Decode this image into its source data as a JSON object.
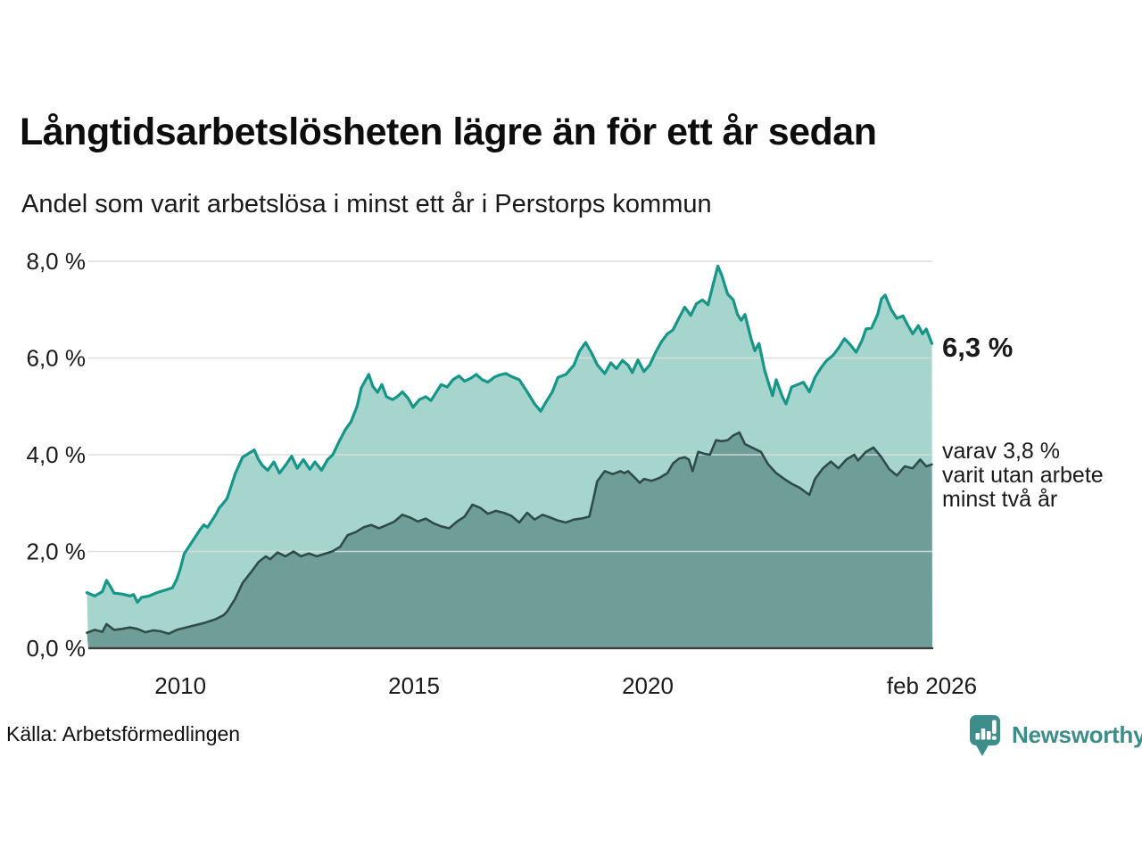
{
  "header": {
    "title": "Långtidsarbetslösheten lägre än för ett år sedan",
    "subtitle": "Andel som varit arbetslösa i minst ett år i Perstorps kommun"
  },
  "footer": {
    "source": "Källa: Arbetsförmedlingen",
    "brand": "Newsworthy"
  },
  "colors": {
    "brand_teal": "#3d8e8b",
    "grid": "#d8dbda",
    "axis": "#3b3b3b",
    "text": "#1a1a1a"
  },
  "chart_data": {
    "type": "area",
    "title": "Långtidsarbetslösheten lägre än för ett år sedan",
    "subtitle": "Andel som varit arbetslösa i minst ett år i Perstorps kommun",
    "xlabel": "",
    "ylabel": "",
    "ylim": [
      0,
      8
    ],
    "xlim": [
      2008.03,
      2026.09
    ],
    "grid": true,
    "legend_position": "right-annotations",
    "y_ticks": [
      {
        "value": 8,
        "label": "8,0 %"
      },
      {
        "value": 6,
        "label": "6,0 %"
      },
      {
        "value": 4,
        "label": "4,0 %"
      },
      {
        "value": 2,
        "label": "2,0 %"
      },
      {
        "value": 0,
        "label": "0,0 %"
      }
    ],
    "x_ticks": [
      {
        "year": 2010,
        "label": "2010"
      },
      {
        "year": 2015,
        "label": "2015"
      },
      {
        "year": 2020,
        "label": "2020"
      },
      {
        "year": 2026.08,
        "label": "feb 2026"
      }
    ],
    "series": [
      {
        "name": "Andel som varit arbetslösa i minst ett år",
        "line_color": "#169688",
        "fill_color": "#a6d5cd",
        "line_width": 3.2,
        "end_value": "6,3 %",
        "end_label_lines": [
          "6,3 %"
        ],
        "points": [
          [
            2008.0,
            1.15
          ],
          [
            2008.17,
            1.08
          ],
          [
            2008.33,
            1.17
          ],
          [
            2008.42,
            1.4
          ],
          [
            2008.5,
            1.28
          ],
          [
            2008.58,
            1.14
          ],
          [
            2008.75,
            1.12
          ],
          [
            2008.92,
            1.08
          ],
          [
            2009.0,
            1.11
          ],
          [
            2009.08,
            0.95
          ],
          [
            2009.17,
            1.05
          ],
          [
            2009.33,
            1.08
          ],
          [
            2009.5,
            1.15
          ],
          [
            2009.67,
            1.2
          ],
          [
            2009.83,
            1.25
          ],
          [
            2009.92,
            1.42
          ],
          [
            2010.0,
            1.65
          ],
          [
            2010.08,
            1.95
          ],
          [
            2010.25,
            2.2
          ],
          [
            2010.42,
            2.45
          ],
          [
            2010.5,
            2.55
          ],
          [
            2010.58,
            2.5
          ],
          [
            2010.75,
            2.75
          ],
          [
            2010.83,
            2.9
          ],
          [
            2010.92,
            3.0
          ],
          [
            2011.0,
            3.1
          ],
          [
            2011.17,
            3.6
          ],
          [
            2011.33,
            3.95
          ],
          [
            2011.5,
            4.05
          ],
          [
            2011.58,
            4.1
          ],
          [
            2011.67,
            3.9
          ],
          [
            2011.75,
            3.78
          ],
          [
            2011.87,
            3.68
          ],
          [
            2012.0,
            3.85
          ],
          [
            2012.12,
            3.62
          ],
          [
            2012.25,
            3.78
          ],
          [
            2012.38,
            3.97
          ],
          [
            2012.5,
            3.72
          ],
          [
            2012.63,
            3.9
          ],
          [
            2012.77,
            3.7
          ],
          [
            2012.88,
            3.85
          ],
          [
            2013.02,
            3.68
          ],
          [
            2013.15,
            3.9
          ],
          [
            2013.26,
            4.0
          ],
          [
            2013.4,
            4.28
          ],
          [
            2013.53,
            4.52
          ],
          [
            2013.65,
            4.68
          ],
          [
            2013.78,
            5.0
          ],
          [
            2013.87,
            5.38
          ],
          [
            2014.03,
            5.66
          ],
          [
            2014.12,
            5.41
          ],
          [
            2014.22,
            5.29
          ],
          [
            2014.31,
            5.45
          ],
          [
            2014.41,
            5.2
          ],
          [
            2014.54,
            5.14
          ],
          [
            2014.64,
            5.2
          ],
          [
            2014.75,
            5.3
          ],
          [
            2014.87,
            5.17
          ],
          [
            2014.98,
            4.98
          ],
          [
            2015.11,
            5.14
          ],
          [
            2015.25,
            5.2
          ],
          [
            2015.36,
            5.12
          ],
          [
            2015.46,
            5.27
          ],
          [
            2015.58,
            5.45
          ],
          [
            2015.71,
            5.4
          ],
          [
            2015.83,
            5.55
          ],
          [
            2015.96,
            5.63
          ],
          [
            2016.08,
            5.52
          ],
          [
            2016.21,
            5.58
          ],
          [
            2016.33,
            5.66
          ],
          [
            2016.46,
            5.55
          ],
          [
            2016.58,
            5.5
          ],
          [
            2016.71,
            5.6
          ],
          [
            2016.83,
            5.65
          ],
          [
            2016.96,
            5.68
          ],
          [
            2017.08,
            5.62
          ],
          [
            2017.25,
            5.55
          ],
          [
            2017.42,
            5.3
          ],
          [
            2017.58,
            5.05
          ],
          [
            2017.71,
            4.9
          ],
          [
            2017.83,
            5.1
          ],
          [
            2017.96,
            5.3
          ],
          [
            2018.08,
            5.6
          ],
          [
            2018.25,
            5.66
          ],
          [
            2018.42,
            5.85
          ],
          [
            2018.54,
            6.14
          ],
          [
            2018.67,
            6.32
          ],
          [
            2018.79,
            6.12
          ],
          [
            2018.92,
            5.86
          ],
          [
            2019.08,
            5.68
          ],
          [
            2019.21,
            5.9
          ],
          [
            2019.33,
            5.78
          ],
          [
            2019.46,
            5.95
          ],
          [
            2019.58,
            5.85
          ],
          [
            2019.67,
            5.7
          ],
          [
            2019.79,
            5.96
          ],
          [
            2019.92,
            5.72
          ],
          [
            2020.04,
            5.85
          ],
          [
            2020.17,
            6.12
          ],
          [
            2020.29,
            6.33
          ],
          [
            2020.42,
            6.5
          ],
          [
            2020.54,
            6.58
          ],
          [
            2020.67,
            6.83
          ],
          [
            2020.79,
            7.05
          ],
          [
            2020.92,
            6.88
          ],
          [
            2021.04,
            7.12
          ],
          [
            2021.17,
            7.2
          ],
          [
            2021.29,
            7.1
          ],
          [
            2021.42,
            7.6
          ],
          [
            2021.5,
            7.9
          ],
          [
            2021.58,
            7.72
          ],
          [
            2021.71,
            7.32
          ],
          [
            2021.83,
            7.2
          ],
          [
            2021.92,
            6.9
          ],
          [
            2022.0,
            6.78
          ],
          [
            2022.08,
            6.9
          ],
          [
            2022.21,
            6.4
          ],
          [
            2022.29,
            6.15
          ],
          [
            2022.38,
            6.3
          ],
          [
            2022.5,
            5.75
          ],
          [
            2022.58,
            5.5
          ],
          [
            2022.67,
            5.22
          ],
          [
            2022.75,
            5.55
          ],
          [
            2022.88,
            5.2
          ],
          [
            2022.96,
            5.05
          ],
          [
            2023.08,
            5.4
          ],
          [
            2023.21,
            5.45
          ],
          [
            2023.33,
            5.5
          ],
          [
            2023.46,
            5.3
          ],
          [
            2023.58,
            5.6
          ],
          [
            2023.71,
            5.8
          ],
          [
            2023.83,
            5.95
          ],
          [
            2023.96,
            6.05
          ],
          [
            2024.08,
            6.2
          ],
          [
            2024.21,
            6.4
          ],
          [
            2024.33,
            6.28
          ],
          [
            2024.46,
            6.12
          ],
          [
            2024.58,
            6.35
          ],
          [
            2024.67,
            6.6
          ],
          [
            2024.79,
            6.62
          ],
          [
            2024.92,
            6.9
          ],
          [
            2025.0,
            7.22
          ],
          [
            2025.08,
            7.3
          ],
          [
            2025.21,
            7.0
          ],
          [
            2025.33,
            6.82
          ],
          [
            2025.46,
            6.87
          ],
          [
            2025.58,
            6.65
          ],
          [
            2025.67,
            6.5
          ],
          [
            2025.79,
            6.67
          ],
          [
            2025.88,
            6.5
          ],
          [
            2025.96,
            6.6
          ],
          [
            2026.08,
            6.3
          ]
        ]
      },
      {
        "name": "varav andel som varit utan arbete minst två år",
        "line_color": "#2f4c48",
        "fill_color": "#6f9e99",
        "line_width": 2.6,
        "end_value": "3,8 %",
        "end_label_lines": [
          "varav 3,8 %",
          "varit utan arbete",
          "minst två år"
        ],
        "points": [
          [
            2008.0,
            0.32
          ],
          [
            2008.17,
            0.38
          ],
          [
            2008.33,
            0.34
          ],
          [
            2008.42,
            0.5
          ],
          [
            2008.58,
            0.38
          ],
          [
            2008.75,
            0.4
          ],
          [
            2008.92,
            0.43
          ],
          [
            2009.08,
            0.4
          ],
          [
            2009.25,
            0.33
          ],
          [
            2009.42,
            0.37
          ],
          [
            2009.58,
            0.35
          ],
          [
            2009.75,
            0.3
          ],
          [
            2009.92,
            0.38
          ],
          [
            2010.08,
            0.42
          ],
          [
            2010.25,
            0.46
          ],
          [
            2010.5,
            0.52
          ],
          [
            2010.75,
            0.6
          ],
          [
            2010.92,
            0.68
          ],
          [
            2011.0,
            0.76
          ],
          [
            2011.17,
            1.02
          ],
          [
            2011.33,
            1.35
          ],
          [
            2011.5,
            1.56
          ],
          [
            2011.58,
            1.66
          ],
          [
            2011.67,
            1.78
          ],
          [
            2011.83,
            1.9
          ],
          [
            2011.92,
            1.84
          ],
          [
            2012.08,
            1.98
          ],
          [
            2012.25,
            1.9
          ],
          [
            2012.42,
            2.0
          ],
          [
            2012.58,
            1.9
          ],
          [
            2012.75,
            1.96
          ],
          [
            2012.92,
            1.9
          ],
          [
            2013.08,
            1.95
          ],
          [
            2013.25,
            2.0
          ],
          [
            2013.42,
            2.1
          ],
          [
            2013.58,
            2.34
          ],
          [
            2013.75,
            2.4
          ],
          [
            2013.92,
            2.5
          ],
          [
            2014.08,
            2.55
          ],
          [
            2014.25,
            2.48
          ],
          [
            2014.42,
            2.55
          ],
          [
            2014.58,
            2.62
          ],
          [
            2014.75,
            2.76
          ],
          [
            2014.92,
            2.7
          ],
          [
            2015.08,
            2.62
          ],
          [
            2015.25,
            2.68
          ],
          [
            2015.42,
            2.58
          ],
          [
            2015.58,
            2.52
          ],
          [
            2015.75,
            2.48
          ],
          [
            2015.92,
            2.62
          ],
          [
            2016.08,
            2.72
          ],
          [
            2016.25,
            2.97
          ],
          [
            2016.42,
            2.9
          ],
          [
            2016.58,
            2.78
          ],
          [
            2016.75,
            2.84
          ],
          [
            2016.92,
            2.8
          ],
          [
            2017.08,
            2.74
          ],
          [
            2017.25,
            2.6
          ],
          [
            2017.42,
            2.8
          ],
          [
            2017.58,
            2.66
          ],
          [
            2017.75,
            2.76
          ],
          [
            2017.92,
            2.7
          ],
          [
            2018.08,
            2.64
          ],
          [
            2018.25,
            2.6
          ],
          [
            2018.42,
            2.66
          ],
          [
            2018.58,
            2.68
          ],
          [
            2018.75,
            2.72
          ],
          [
            2018.83,
            3.05
          ],
          [
            2018.92,
            3.45
          ],
          [
            2019.08,
            3.66
          ],
          [
            2019.25,
            3.6
          ],
          [
            2019.42,
            3.66
          ],
          [
            2019.5,
            3.62
          ],
          [
            2019.58,
            3.66
          ],
          [
            2019.75,
            3.5
          ],
          [
            2019.83,
            3.42
          ],
          [
            2019.92,
            3.5
          ],
          [
            2020.08,
            3.46
          ],
          [
            2020.25,
            3.52
          ],
          [
            2020.42,
            3.62
          ],
          [
            2020.54,
            3.82
          ],
          [
            2020.67,
            3.92
          ],
          [
            2020.79,
            3.95
          ],
          [
            2020.88,
            3.9
          ],
          [
            2020.96,
            3.66
          ],
          [
            2021.08,
            4.06
          ],
          [
            2021.21,
            4.02
          ],
          [
            2021.33,
            4.0
          ],
          [
            2021.46,
            4.3
          ],
          [
            2021.58,
            4.28
          ],
          [
            2021.71,
            4.3
          ],
          [
            2021.83,
            4.4
          ],
          [
            2021.96,
            4.46
          ],
          [
            2022.08,
            4.22
          ],
          [
            2022.25,
            4.14
          ],
          [
            2022.42,
            4.06
          ],
          [
            2022.58,
            3.8
          ],
          [
            2022.75,
            3.62
          ],
          [
            2022.92,
            3.5
          ],
          [
            2023.08,
            3.4
          ],
          [
            2023.25,
            3.32
          ],
          [
            2023.46,
            3.17
          ],
          [
            2023.58,
            3.5
          ],
          [
            2023.75,
            3.72
          ],
          [
            2023.92,
            3.86
          ],
          [
            2024.08,
            3.72
          ],
          [
            2024.25,
            3.9
          ],
          [
            2024.42,
            4.0
          ],
          [
            2024.5,
            3.88
          ],
          [
            2024.67,
            4.06
          ],
          [
            2024.83,
            4.15
          ],
          [
            2025.0,
            3.95
          ],
          [
            2025.17,
            3.7
          ],
          [
            2025.33,
            3.57
          ],
          [
            2025.5,
            3.76
          ],
          [
            2025.67,
            3.72
          ],
          [
            2025.83,
            3.9
          ],
          [
            2025.96,
            3.76
          ],
          [
            2026.08,
            3.8
          ]
        ]
      }
    ],
    "source": "Källa: Arbetsförmedlingen",
    "brand": "Newsworthy"
  }
}
